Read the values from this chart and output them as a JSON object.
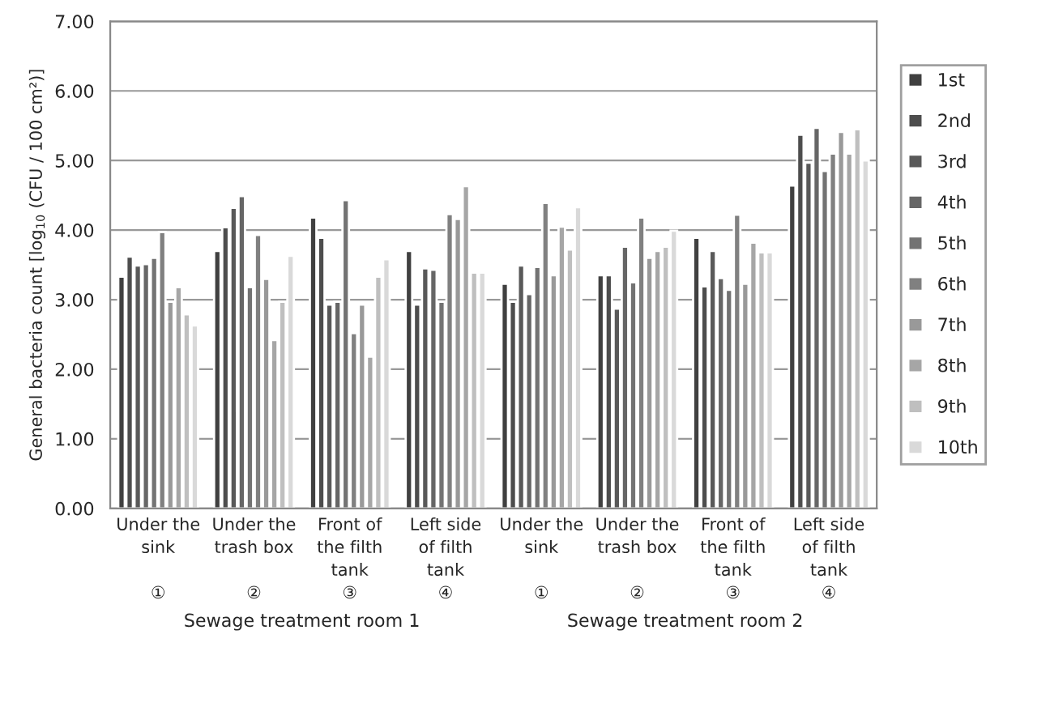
{
  "chart_data": {
    "type": "bar",
    "ylabel": "General bacteria count [log$_{10}$ (CFU / 100 cm²)]",
    "categories": [
      "Under the\nsink\n\n①",
      "Under the\ntrash box\n\n②",
      "Front of\nthe filth\ntank\n③",
      "Left side\nof filth\ntank\n④",
      "Under the\nsink\n\n①",
      "Under the\ntrash box\n\n②",
      "Front of\nthe filth\ntank\n③",
      "Left side\nof filth\ntank\n④"
    ],
    "annotations": [
      "Sewage treatment room 1",
      "Sewage treatment room 2"
    ],
    "ylim": [
      0,
      7
    ],
    "yticks": [
      {
        "value": 0,
        "label": "0.00"
      },
      {
        "value": 1,
        "label": "1.00"
      },
      {
        "value": 2,
        "label": "2.00"
      },
      {
        "value": 3,
        "label": "3.00"
      },
      {
        "value": 4,
        "label": "4.00"
      },
      {
        "value": 5,
        "label": "5.00"
      },
      {
        "value": 6,
        "label": "6.00"
      },
      {
        "value": 7,
        "label": "7.00"
      }
    ],
    "grid": "y",
    "legend": "right",
    "series": [
      {
        "name": "1st",
        "color": "#404040",
        "values": [
          3.33,
          3.7,
          4.18,
          3.7,
          3.23,
          3.35,
          3.89,
          4.64
        ]
      },
      {
        "name": "2nd",
        "color": "#4d4d4d",
        "values": [
          3.62,
          4.04,
          3.89,
          2.93,
          2.97,
          3.35,
          3.19,
          5.37
        ]
      },
      {
        "name": "3rd",
        "color": "#595959",
        "values": [
          3.49,
          4.32,
          2.93,
          3.45,
          3.49,
          2.87,
          3.7,
          4.97
        ]
      },
      {
        "name": "4th",
        "color": "#666666",
        "values": [
          3.51,
          4.49,
          2.97,
          3.43,
          3.08,
          3.76,
          3.31,
          5.47
        ]
      },
      {
        "name": "5th",
        "color": "#737373",
        "values": [
          3.6,
          3.18,
          4.43,
          2.97,
          3.47,
          3.25,
          3.14,
          4.85
        ]
      },
      {
        "name": "6th",
        "color": "#808080",
        "values": [
          3.97,
          3.93,
          2.52,
          4.23,
          4.39,
          4.18,
          4.22,
          5.1
        ]
      },
      {
        "name": "7th",
        "color": "#999999",
        "values": [
          2.97,
          3.3,
          2.93,
          4.16,
          3.35,
          3.6,
          3.23,
          5.41
        ]
      },
      {
        "name": "8th",
        "color": "#a6a6a6",
        "values": [
          3.18,
          2.42,
          2.18,
          4.63,
          4.05,
          3.7,
          3.82,
          5.1
        ]
      },
      {
        "name": "9th",
        "color": "#bfbfbf",
        "values": [
          2.79,
          2.97,
          3.33,
          3.39,
          3.72,
          3.76,
          3.68,
          5.45
        ]
      },
      {
        "name": "10th",
        "color": "#d9d9d9",
        "values": [
          2.63,
          3.63,
          3.58,
          3.39,
          4.33,
          3.99,
          3.68,
          5.0
        ]
      }
    ]
  }
}
